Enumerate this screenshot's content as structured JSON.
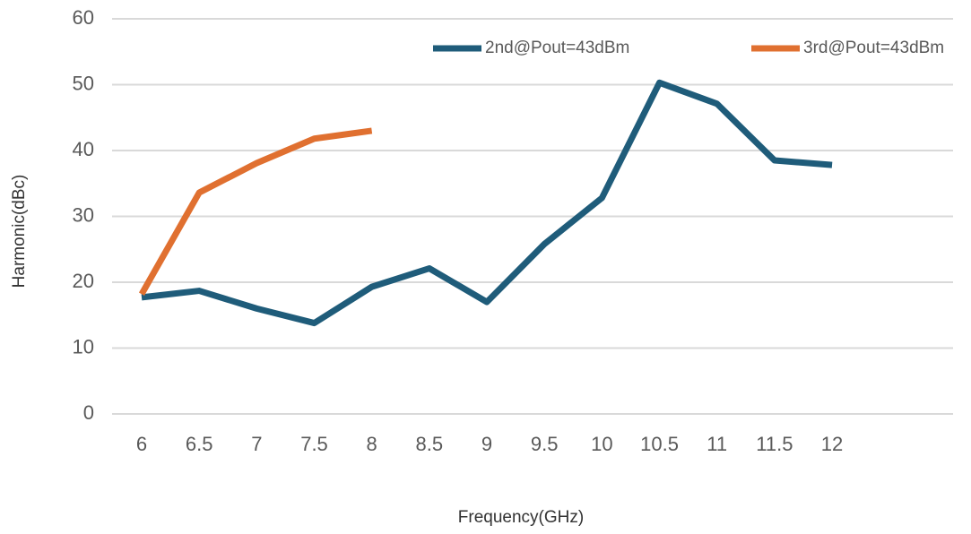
{
  "chart_data": {
    "type": "line",
    "x_label": "Frequency(GHz)",
    "y_label": "Harmonic(dBc)",
    "categories": [
      "6",
      "6.5",
      "7",
      "7.5",
      "8",
      "8.5",
      "9",
      "9.5",
      "10",
      "10.5",
      "11",
      "11.5",
      "12"
    ],
    "series": [
      {
        "name": "2nd@Pout=43dBm",
        "color": "#1f5c7a",
        "values": [
          17.7,
          18.7,
          16,
          13.8,
          19.3,
          22.1,
          17,
          25.8,
          32.8,
          50.3,
          47.1,
          38.5,
          37.8
        ]
      },
      {
        "name": "3rd@Pout=43dBm",
        "color": "#e07030",
        "values": [
          18.2,
          33.6,
          38.1,
          41.8,
          43,
          null,
          null,
          null,
          null,
          null,
          null,
          null,
          null
        ]
      }
    ],
    "ylim": [
      0,
      60
    ],
    "yticks": [
      0,
      10,
      20,
      30,
      40,
      50,
      60
    ],
    "grid": true,
    "legend": "top"
  }
}
